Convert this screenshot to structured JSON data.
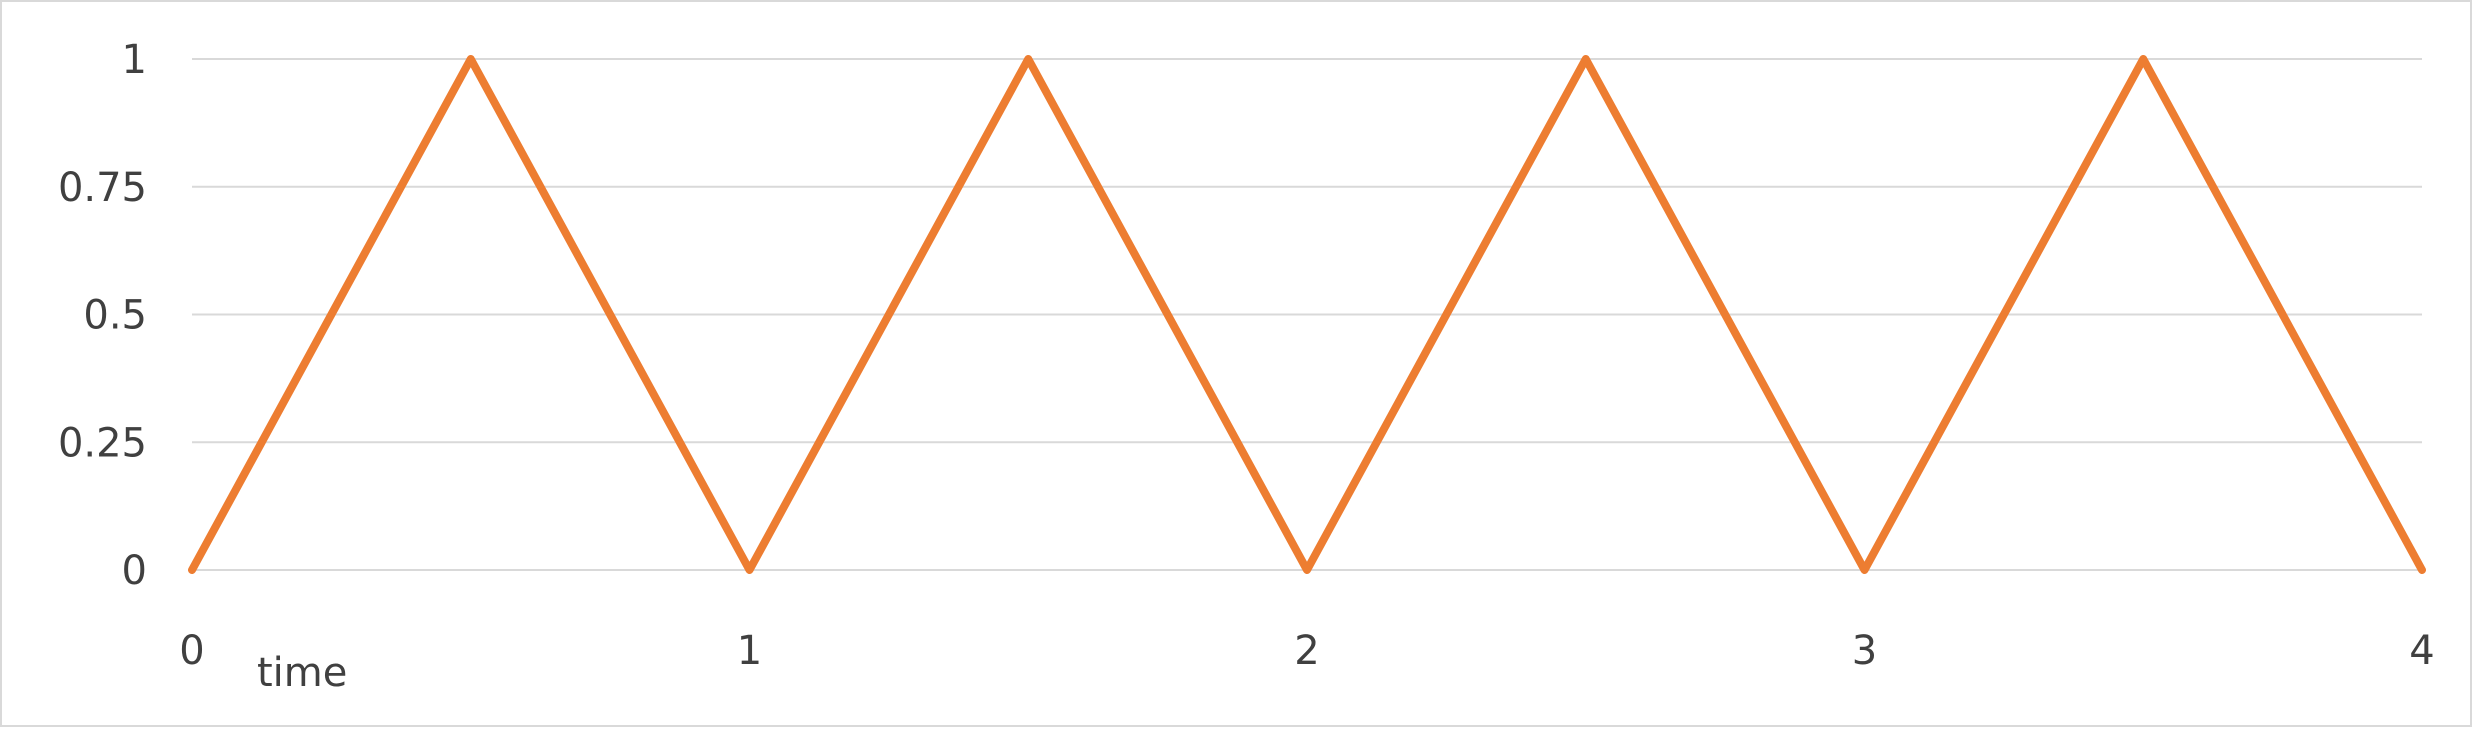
{
  "chart_data": {
    "type": "line",
    "title": "",
    "xlabel": "time",
    "ylabel": "",
    "xlim": [
      0,
      4
    ],
    "ylim": [
      0,
      1
    ],
    "x_ticks": [
      "0",
      "1",
      "2",
      "3",
      "4"
    ],
    "y_ticks": [
      "0",
      "0.25",
      "0.5",
      "0.75",
      "1"
    ],
    "grid": true,
    "legend": "none",
    "series": [
      {
        "color": "#ed7d31",
        "x": [
          0,
          0.5,
          1,
          1.5,
          2,
          2.5,
          3,
          3.5,
          4
        ],
        "y": [
          0,
          1,
          0,
          1,
          0,
          1,
          0,
          1,
          0
        ]
      }
    ]
  }
}
